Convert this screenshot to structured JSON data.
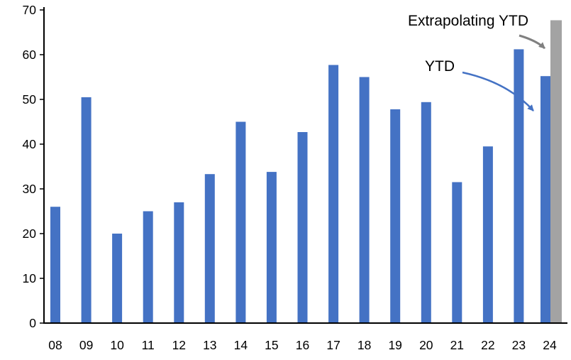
{
  "chart_data": {
    "type": "bar",
    "title": "",
    "xlabel": "",
    "ylabel": "",
    "categories": [
      "08",
      "09",
      "10",
      "11",
      "12",
      "13",
      "14",
      "15",
      "16",
      "17",
      "18",
      "19",
      "20",
      "21",
      "22",
      "23",
      "24"
    ],
    "series": [
      {
        "name": "YTD",
        "color": "#4472C4",
        "values": [
          26,
          50.5,
          20,
          25,
          27,
          33.3,
          45,
          33.8,
          42.7,
          57.7,
          55,
          47.8,
          49.4,
          31.5,
          39.5,
          61.2,
          55.2
        ]
      },
      {
        "name": "Extrapolating YTD",
        "color": "#A3A3A3",
        "values": [
          null,
          null,
          null,
          null,
          null,
          null,
          null,
          null,
          null,
          null,
          null,
          null,
          null,
          null,
          null,
          null,
          67.7
        ]
      }
    ],
    "ylim": [
      0,
      70
    ],
    "yticks": [
      0,
      10,
      20,
      30,
      40,
      50,
      60,
      70
    ],
    "grid": false,
    "legend": "none",
    "axis_color": "#000000",
    "annotations": [
      {
        "label": "Extrapolating YTD",
        "target": "extrapolated-bar-24",
        "color": "#808080"
      },
      {
        "label": "YTD",
        "target": "bar-24",
        "color": "#4472C4"
      }
    ]
  }
}
